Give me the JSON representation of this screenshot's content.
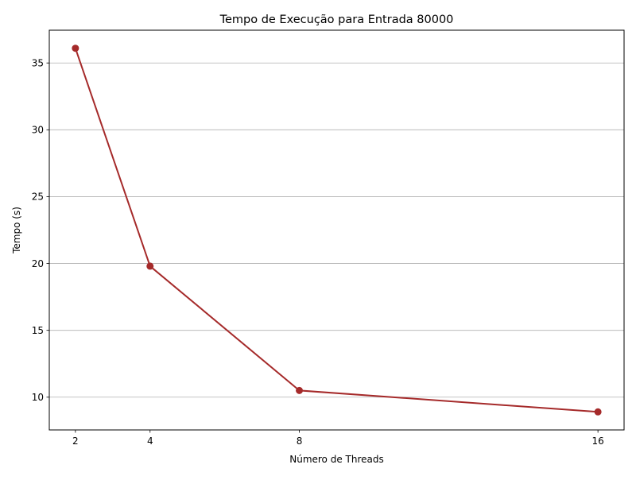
{
  "chart_data": {
    "type": "line",
    "title": "Tempo de Execução para Entrada 80000",
    "xlabel": "Número de Threads",
    "ylabel": "Tempo (s)",
    "x": [
      2,
      4,
      8,
      16
    ],
    "xticks": [
      "2",
      "4",
      "8",
      "16"
    ],
    "yticks": [
      "10",
      "15",
      "20",
      "25",
      "30",
      "35"
    ],
    "ytick_values": [
      10,
      15,
      20,
      25,
      30,
      35
    ],
    "series": [
      {
        "values": [
          36.1,
          19.8,
          10.5,
          8.9
        ],
        "color": "#a52a2a",
        "marker": "circle"
      }
    ],
    "xlim": [
      1.3,
      16.7
    ],
    "ylim": [
      7.55,
      37.45
    ],
    "grid": "y-major",
    "legend": "none"
  }
}
